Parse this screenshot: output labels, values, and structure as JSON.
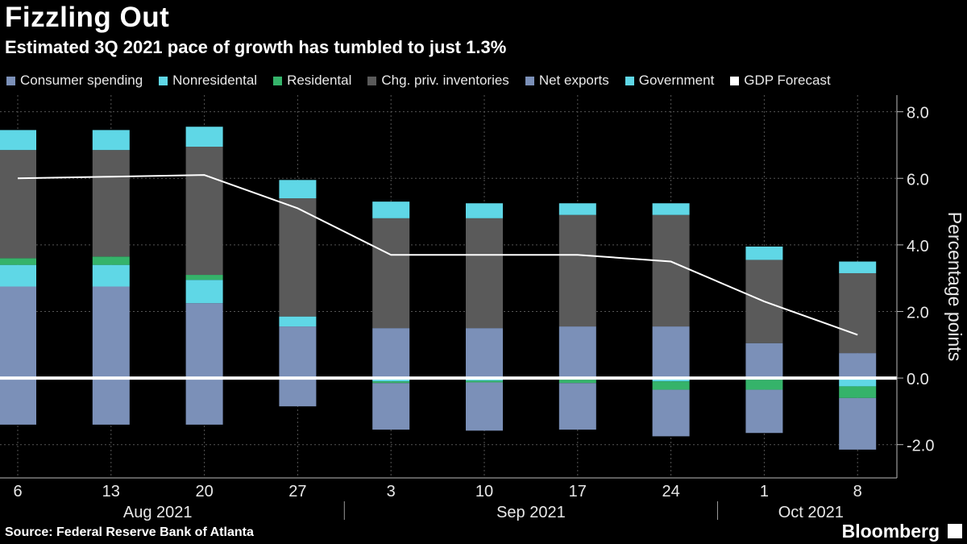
{
  "title": "Fizzling Out",
  "subtitle": "Estimated 3Q 2021 pace of growth has tumbled to just 1.3%",
  "source": "Source: Federal Reserve Bank of Atlanta",
  "brand": "Bloomberg",
  "colors": {
    "consumer": "#7b90b8",
    "nonresidential": "#5fd7e6",
    "residential": "#35b36a",
    "inventories": "#5a5a5a",
    "net_exports": "#7b90b8",
    "government": "#5fd7e6",
    "forecast": "#ffffff"
  },
  "legend": [
    {
      "label": "Consumer spending",
      "color": "#7b90b8"
    },
    {
      "label": "Nonresidental",
      "color": "#5fd7e6"
    },
    {
      "label": "Residental",
      "color": "#35b36a"
    },
    {
      "label": "Chg. priv. inventories",
      "color": "#5a5a5a"
    },
    {
      "label": "Net exports",
      "color": "#7b90b8"
    },
    {
      "label": "Government",
      "color": "#5fd7e6"
    },
    {
      "label": "GDP Forecast",
      "color": "#ffffff"
    }
  ],
  "chart_data": {
    "type": "bar",
    "stacked": true,
    "title": "Fizzling Out",
    "subtitle": "Estimated 3Q 2021 pace of growth has tumbled to just 1.3%",
    "ylabel": "Percentage points",
    "ylim": [
      -3.0,
      8.5
    ],
    "yticks": [
      -2.0,
      0.0,
      2.0,
      4.0,
      6.0,
      8.0
    ],
    "ytick_labels": [
      "-2.0",
      "0.0",
      "2.0",
      "4.0",
      "6.0",
      "8.0"
    ],
    "categories": [
      "6",
      "13",
      "20",
      "27",
      "3",
      "10",
      "17",
      "24",
      "1",
      "8"
    ],
    "months": [
      {
        "label": "Aug 2021",
        "start": 0,
        "end": 3
      },
      {
        "label": "Sep 2021",
        "start": 4,
        "end": 7
      },
      {
        "label": "Oct 2021",
        "start": 8,
        "end": 9
      }
    ],
    "positive_series": [
      {
        "name": "Consumer spending",
        "values": [
          2.75,
          2.75,
          2.25,
          1.55,
          1.5,
          1.5,
          1.55,
          1.55,
          1.05,
          0.75
        ]
      },
      {
        "name": "Nonresidental",
        "values": [
          0.65,
          0.65,
          0.7,
          0.3,
          0,
          0,
          0,
          0,
          0,
          0
        ]
      },
      {
        "name": "Residental",
        "values": [
          0.2,
          0.25,
          0.15,
          0,
          0,
          0,
          0,
          0,
          0,
          0
        ]
      },
      {
        "name": "Chg. priv. inventories",
        "values": [
          3.25,
          3.2,
          3.85,
          3.55,
          3.3,
          3.3,
          3.35,
          3.35,
          2.5,
          2.4
        ]
      },
      {
        "name": "Government",
        "values": [
          0.6,
          0.6,
          0.6,
          0.55,
          0.5,
          0.45,
          0.35,
          0.35,
          0.4,
          0.35
        ]
      }
    ],
    "negative_series": [
      {
        "name": "Government",
        "values": [
          0,
          0,
          0,
          0,
          -0.1,
          -0.08,
          -0.05,
          -0.1,
          -0.05,
          -0.25
        ]
      },
      {
        "name": "Residental",
        "values": [
          0,
          0,
          0,
          0,
          -0.05,
          -0.05,
          -0.1,
          -0.25,
          -0.3,
          -0.35
        ]
      },
      {
        "name": "Net exports",
        "values": [
          -1.4,
          -1.4,
          -1.4,
          -0.85,
          -1.4,
          -1.45,
          -1.4,
          -1.4,
          -1.3,
          -1.55
        ]
      }
    ],
    "line_series": {
      "name": "GDP Forecast",
      "values": [
        6.0,
        6.05,
        6.1,
        5.1,
        3.7,
        3.7,
        3.7,
        3.5,
        2.3,
        1.3
      ]
    }
  }
}
